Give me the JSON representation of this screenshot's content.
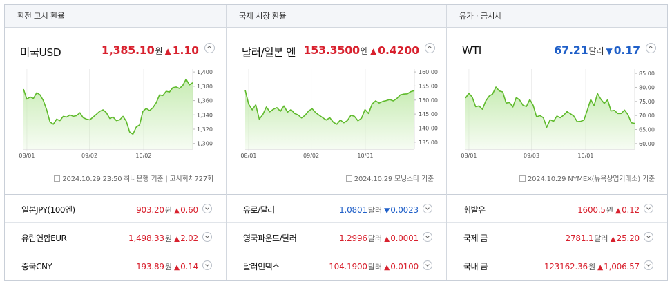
{
  "columns": [
    {
      "header": "환전 고시 환율",
      "main": {
        "name": "미국USD",
        "value": "1,385.10",
        "unit": "원",
        "arrow": "▲",
        "change": "1.10",
        "direction": "up",
        "chart_data": {
          "type": "area",
          "x_ticks": [
            "08/01",
            "09/02",
            "10/02"
          ],
          "y_ticks": [
            "1,400",
            "1,380",
            "1,360",
            "1,340",
            "1,320",
            "1,300"
          ],
          "ylim": [
            1292,
            1404
          ],
          "values": [
            1376,
            1362,
            1365,
            1363,
            1371,
            1368,
            1360,
            1347,
            1330,
            1327,
            1334,
            1332,
            1338,
            1337,
            1340,
            1338,
            1339,
            1343,
            1336,
            1334,
            1333,
            1337,
            1341,
            1345,
            1347,
            1343,
            1335,
            1337,
            1332,
            1333,
            1338,
            1331,
            1316,
            1313,
            1323,
            1326,
            1345,
            1349,
            1346,
            1350,
            1357,
            1368,
            1367,
            1373,
            1372,
            1378,
            1379,
            1377,
            1381,
            1390,
            1382,
            1385
          ],
          "color": "#5fba2c",
          "fill": "#c5ebb0"
        },
        "source": "2024.10.29 23:50 하나은행  기준 | 고시회차727회"
      },
      "rows": [
        {
          "label": "일본JPY(100엔)",
          "value": "903.20",
          "unit": "원",
          "arrow": "▲",
          "change": "0.60",
          "direction": "up"
        },
        {
          "label": "유럽연합EUR",
          "value": "1,498.33",
          "unit": "원",
          "arrow": "▲",
          "change": "2.02",
          "direction": "up"
        },
        {
          "label": "중국CNY",
          "value": "193.89",
          "unit": "원",
          "arrow": "▲",
          "change": "0.14",
          "direction": "up"
        }
      ]
    },
    {
      "header": "국제 시장 환율",
      "main": {
        "name": "달러/일본 엔",
        "value": "153.3500",
        "unit": "엔",
        "arrow": "▲",
        "change": "0.4200",
        "direction": "up",
        "chart_data": {
          "type": "area",
          "x_ticks": [
            "08/01",
            "09/02",
            "10/01"
          ],
          "y_ticks": [
            "160.00",
            "155.00",
            "150.00",
            "145.00",
            "140.00",
            "135.00"
          ],
          "ylim": [
            132.5,
            161
          ],
          "values": [
            153.5,
            148.5,
            146.5,
            148.3,
            143.2,
            144.8,
            147.5,
            145.8,
            146.7,
            147.3,
            146.0,
            147.9,
            145.7,
            146.6,
            145.2,
            144.7,
            143.6,
            144.6,
            146.1,
            146.9,
            145.5,
            144.6,
            143.7,
            142.9,
            143.7,
            142.1,
            141.4,
            142.9,
            141.9,
            142.7,
            144.6,
            144.2,
            142.6,
            143.5,
            146.6,
            145.2,
            148.6,
            149.7,
            148.9,
            149.5,
            149.8,
            150.2,
            149.7,
            150.5,
            151.8,
            152.1,
            152.2,
            153.0,
            153.35
          ],
          "color": "#5fba2c",
          "fill": "#c5ebb0"
        },
        "source": "2024.10.29 모닝스타  기준"
      },
      "rows": [
        {
          "label": "유로/달러",
          "value": "1.0801",
          "unit": "달러",
          "arrow": "▼",
          "change": "0.0023",
          "direction": "down"
        },
        {
          "label": "영국파운드/달러",
          "value": "1.2996",
          "unit": "달러",
          "arrow": "▲",
          "change": "0.0001",
          "direction": "up"
        },
        {
          "label": "달러인덱스",
          "value": "104.1900",
          "unit": "달러",
          "arrow": "▲",
          "change": "0.0100",
          "direction": "up"
        }
      ]
    },
    {
      "header": "유가 · 금시세",
      "main": {
        "name": "WTI",
        "value": "67.21",
        "unit": "달러",
        "arrow": "▼",
        "change": "0.17",
        "direction": "down",
        "chart_data": {
          "type": "area",
          "x_ticks": [
            "08/01",
            "09/03",
            "10/01"
          ],
          "y_ticks": [
            "85.00",
            "80.00",
            "75.00",
            "70.00",
            "65.00",
            "60.00"
          ],
          "ylim": [
            58,
            86.5
          ],
          "values": [
            76.2,
            77.9,
            76.5,
            73.1,
            73.4,
            72.2,
            75.2,
            76.9,
            77.6,
            80.1,
            78.7,
            78.4,
            74.4,
            74.6,
            73.0,
            76.4,
            75.5,
            73.6,
            73.2,
            75.7,
            73.6,
            69.5,
            70.0,
            69.2,
            65.8,
            68.5,
            67.9,
            69.8,
            69.2,
            70.1,
            71.4,
            70.6,
            69.8,
            67.8,
            67.9,
            68.4,
            71.9,
            75.7,
            73.5,
            77.8,
            75.8,
            74.3,
            75.6,
            71.6,
            71.8,
            70.7,
            70.7,
            71.9,
            70.3,
            67.4,
            67.2
          ]
        },
        "source": "2024.10.29 NYMEX(뉴욕상업거래소)  기준"
      },
      "rows": [
        {
          "label": "휘발유",
          "value": "1600.5",
          "unit": "원",
          "arrow": "▲",
          "change": "0.12",
          "direction": "up"
        },
        {
          "label": "국제 금",
          "value": "2781.1",
          "unit": "달러",
          "arrow": "▲",
          "change": "25.20",
          "direction": "up"
        },
        {
          "label": "국내 금",
          "value": "123162.36",
          "unit": "원",
          "arrow": "▲",
          "change": "1,006.57",
          "direction": "up"
        }
      ]
    }
  ],
  "colors": {
    "up": "#d8212e",
    "down": "#1f5fc8",
    "line": "#5fba2c"
  }
}
